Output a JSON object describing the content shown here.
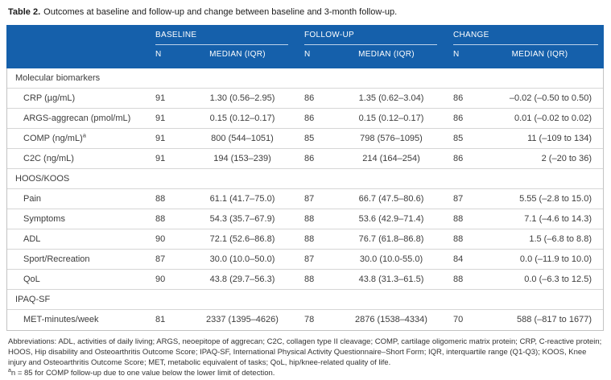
{
  "title": {
    "label": "Table 2.",
    "text": "Outcomes at baseline and follow-up and change between baseline and 3-month follow-up."
  },
  "header": {
    "groups": [
      {
        "label": "BASELINE"
      },
      {
        "label": "FOLLOW-UP"
      },
      {
        "label": "CHANGE"
      }
    ],
    "sub": {
      "n": "N",
      "median": "MEDIAN (IQR)"
    }
  },
  "sections": [
    {
      "label": "Molecular biomarkers",
      "rows": [
        {
          "label": "CRP (µg/mL)",
          "sup": "",
          "baseline_n": "91",
          "baseline_median": "1.30 (0.56–2.95)",
          "followup_n": "86",
          "followup_median": "1.35 (0.62–3.04)",
          "change_n": "86",
          "change_median": "–0.02 (–0.50 to 0.50)"
        },
        {
          "label": "ARGS-aggrecan (pmol/mL)",
          "sup": "",
          "baseline_n": "91",
          "baseline_median": "0.15 (0.12–0.17)",
          "followup_n": "86",
          "followup_median": "0.15 (0.12–0.17)",
          "change_n": "86",
          "change_median": "0.01 (–0.02 to 0.02)"
        },
        {
          "label": "COMP (ng/mL)",
          "sup": "a",
          "baseline_n": "91",
          "baseline_median": "800 (544–1051)",
          "followup_n": "85",
          "followup_median": "798 (576–1095)",
          "change_n": "85",
          "change_median": "11 (–109 to 134)"
        },
        {
          "label": "C2C (ng/mL)",
          "sup": "",
          "baseline_n": "91",
          "baseline_median": "194 (153–239)",
          "followup_n": "86",
          "followup_median": "214 (164–254)",
          "change_n": "86",
          "change_median": "2 (–20 to 36)"
        }
      ]
    },
    {
      "label": "HOOS/KOOS",
      "rows": [
        {
          "label": "Pain",
          "sup": "",
          "baseline_n": "88",
          "baseline_median": "61.1 (41.7–75.0)",
          "followup_n": "87",
          "followup_median": "66.7 (47.5–80.6)",
          "change_n": "87",
          "change_median": "5.55 (–2.8 to 15.0)"
        },
        {
          "label": "Symptoms",
          "sup": "",
          "baseline_n": "88",
          "baseline_median": "54.3 (35.7–67.9)",
          "followup_n": "88",
          "followup_median": "53.6 (42.9–71.4)",
          "change_n": "88",
          "change_median": "7.1 (–4.6 to 14.3)"
        },
        {
          "label": "ADL",
          "sup": "",
          "baseline_n": "90",
          "baseline_median": "72.1 (52.6–86.8)",
          "followup_n": "88",
          "followup_median": "76.7 (61.8–86.8)",
          "change_n": "88",
          "change_median": "1.5 (–6.8 to 8.8)"
        },
        {
          "label": "Sport/Recreation",
          "sup": "",
          "baseline_n": "87",
          "baseline_median": "30.0 (10.0–50.0)",
          "followup_n": "87",
          "followup_median": "30.0 (10.0-55.0)",
          "change_n": "84",
          "change_median": "0.0 (–11.9 to 10.0)"
        },
        {
          "label": "QoL",
          "sup": "",
          "baseline_n": "90",
          "baseline_median": "43.8 (29.7–56.3)",
          "followup_n": "88",
          "followup_median": "43.8 (31.3–61.5)",
          "change_n": "88",
          "change_median": "0.0 (–6.3 to 12.5)"
        }
      ]
    },
    {
      "label": "IPAQ-SF",
      "rows": [
        {
          "label": "MET-minutes/week",
          "sup": "",
          "baseline_n": "81",
          "baseline_median": "2337 (1395–4626)",
          "followup_n": "78",
          "followup_median": "2876 (1538–4334)",
          "change_n": "70",
          "change_median": "588 (–817 to 1677)"
        }
      ]
    }
  ],
  "footnotes": {
    "abbreviations": "Abbreviations: ADL, activities of daily living; ARGS, neoepitope of aggrecan; C2C, collagen type II cleavage; COMP, cartilage oligomeric matrix protein; CRP, C-reactive protein; HOOS, Hip disability and Osteoarthritis Outcome Score; IPAQ-SF, International Physical Activity Questionnaire–Short Form; IQR, interquartile range (Q1-Q3); KOOS, Knee injury and Osteoarthritis Outcome Score; MET, metabolic equivalent of tasks; QoL, hip/knee-related quality of life.",
    "note_sup": "a",
    "note": "n = 85 for COMP follow-up due to one value below the lower limit of detection."
  },
  "colors": {
    "header_blue": "#1560AB",
    "header_text": "#ffffff",
    "row_divider": "#d6d6d6",
    "body_text": "#3d3d3d"
  }
}
